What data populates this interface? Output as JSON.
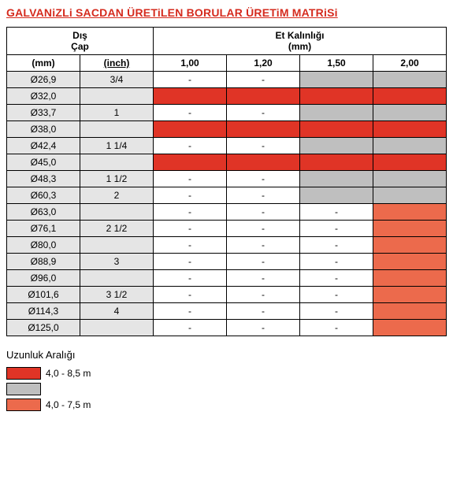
{
  "title": "GALVANiZLi SACDAN ÜRETiLEN BORULAR ÜRETiM MATRiSi",
  "headers": {
    "outer_diameter": "Dış\nÇap",
    "wall_thickness": "Et Kalınlığı\n(mm)",
    "mm": "(mm)",
    "inch": "(inch)",
    "t100": "1,00",
    "t120": "1,20",
    "t150": "1,50",
    "t200": "2,00"
  },
  "rows": [
    {
      "mm": "Ø26,9",
      "inch": "3/4",
      "c": [
        "-",
        "-",
        "",
        ""
      ],
      "bg": [
        "",
        "",
        "dgrey",
        "dgrey"
      ]
    },
    {
      "mm": "Ø32,0",
      "inch": "",
      "c": [
        "",
        "",
        "",
        ""
      ],
      "bg": [
        "red",
        "red",
        "red",
        "red"
      ]
    },
    {
      "mm": "Ø33,7",
      "inch": "1",
      "c": [
        "-",
        "-",
        "",
        ""
      ],
      "bg": [
        "",
        "",
        "dgrey",
        "dgrey"
      ]
    },
    {
      "mm": "Ø38,0",
      "inch": "",
      "c": [
        "",
        "",
        "",
        ""
      ],
      "bg": [
        "red",
        "red",
        "red",
        "red"
      ]
    },
    {
      "mm": "Ø42,4",
      "inch": "1 1/4",
      "c": [
        "-",
        "-",
        "",
        ""
      ],
      "bg": [
        "",
        "",
        "dgrey",
        "dgrey"
      ]
    },
    {
      "mm": "Ø45,0",
      "inch": "",
      "c": [
        "",
        "",
        "",
        ""
      ],
      "bg": [
        "red",
        "red",
        "red",
        "red"
      ]
    },
    {
      "mm": "Ø48,3",
      "inch": "1 1/2",
      "c": [
        "-",
        "-",
        "",
        ""
      ],
      "bg": [
        "",
        "",
        "dgrey",
        "dgrey"
      ]
    },
    {
      "mm": "Ø60,3",
      "inch": "2",
      "c": [
        "-",
        "-",
        "",
        ""
      ],
      "bg": [
        "",
        "",
        "dgrey",
        "dgrey"
      ]
    },
    {
      "mm": "Ø63,0",
      "inch": "",
      "c": [
        "-",
        "-",
        "-",
        ""
      ],
      "bg": [
        "",
        "",
        "",
        "orange"
      ]
    },
    {
      "mm": "Ø76,1",
      "inch": "2 1/2",
      "c": [
        "-",
        "-",
        "-",
        ""
      ],
      "bg": [
        "",
        "",
        "",
        "orange"
      ]
    },
    {
      "mm": "Ø80,0",
      "inch": "",
      "c": [
        "-",
        "-",
        "-",
        ""
      ],
      "bg": [
        "",
        "",
        "",
        "orange"
      ]
    },
    {
      "mm": "Ø88,9",
      "inch": "3",
      "c": [
        "-",
        "-",
        "-",
        ""
      ],
      "bg": [
        "",
        "",
        "",
        "orange"
      ]
    },
    {
      "mm": "Ø96,0",
      "inch": "",
      "c": [
        "-",
        "-",
        "-",
        ""
      ],
      "bg": [
        "",
        "",
        "",
        "orange"
      ]
    },
    {
      "mm": "Ø101,6",
      "inch": "3 1/2",
      "c": [
        "-",
        "-",
        "-",
        ""
      ],
      "bg": [
        "",
        "",
        "",
        "orange"
      ]
    },
    {
      "mm": "Ø114,3",
      "inch": "4",
      "c": [
        "-",
        "-",
        "-",
        ""
      ],
      "bg": [
        "",
        "",
        "",
        "orange"
      ]
    },
    {
      "mm": "Ø125,0",
      "inch": "",
      "c": [
        "-",
        "-",
        "-",
        ""
      ],
      "bg": [
        "",
        "",
        "",
        "orange"
      ]
    }
  ],
  "legend": {
    "title": "Uzunluk Aralığı",
    "items": [
      {
        "color": "#e03426",
        "label": "4,0 - 8,5 m"
      },
      {
        "color": "#bfbfbf",
        "label": ""
      },
      {
        "color": "#ec6a4c",
        "label": "4,0 - 7,5 m"
      }
    ]
  },
  "colors": {
    "red": "#e03426",
    "dgrey": "#bfbfbf",
    "orange": "#ec6a4c",
    "grey": "#e5e5e5"
  }
}
